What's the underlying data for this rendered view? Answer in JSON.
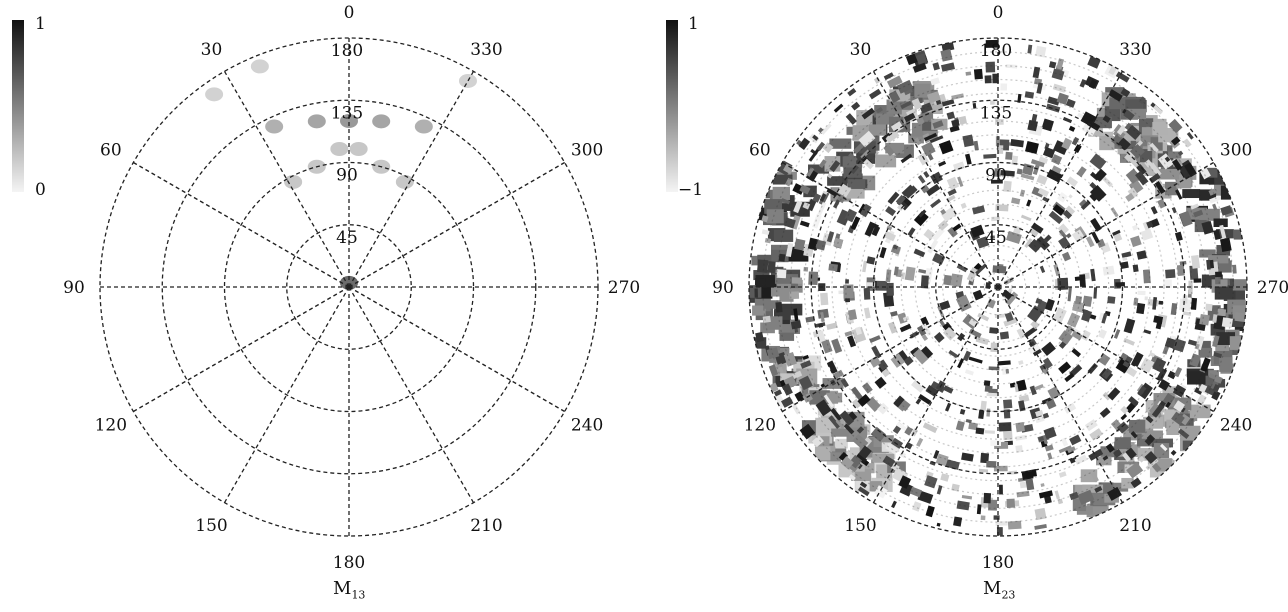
{
  "chart_data": [
    {
      "type": "heatmap",
      "projection": "polar",
      "caption": {
        "main": "M",
        "sub": "13"
      },
      "colorbar": {
        "max_label": "1",
        "min_label": "0",
        "range": [
          0,
          1
        ],
        "colors": [
          "#f4f4f4",
          "#111111"
        ]
      },
      "angular_ticks": [
        "0",
        "30",
        "60",
        "90",
        "120",
        "150",
        "180",
        "210",
        "240",
        "270",
        "300",
        "330"
      ],
      "radial_ticks": [
        "45",
        "90",
        "135",
        "180"
      ],
      "radial_range": [
        0,
        180
      ],
      "grid": true,
      "features": [
        {
          "theta": 0,
          "r": 120,
          "value": 0.4
        },
        {
          "theta": 11,
          "r": 122,
          "value": 0.35
        },
        {
          "theta": -11,
          "r": 122,
          "value": 0.35
        },
        {
          "theta": 25,
          "r": 128,
          "value": 0.3
        },
        {
          "theta": -25,
          "r": 128,
          "value": 0.3
        },
        {
          "theta": 4,
          "r": 100,
          "value": 0.2
        },
        {
          "theta": -4,
          "r": 100,
          "value": 0.2
        },
        {
          "theta": 15,
          "r": 90,
          "value": 0.2
        },
        {
          "theta": -15,
          "r": 90,
          "value": 0.2
        },
        {
          "theta": 28,
          "r": 86,
          "value": 0.2
        },
        {
          "theta": -28,
          "r": 86,
          "value": 0.2
        },
        {
          "theta": 35,
          "r": 170,
          "value": 0.15
        },
        {
          "theta": 22,
          "r": 172,
          "value": 0.15
        },
        {
          "theta": -30,
          "r": 172,
          "value": 0.15
        },
        {
          "theta": 0,
          "r": 3,
          "value": 0.6
        }
      ]
    },
    {
      "type": "heatmap",
      "projection": "polar",
      "caption": {
        "main": "M",
        "sub": "23"
      },
      "colorbar": {
        "max_label": "1",
        "min_label": "−1",
        "range": [
          -1,
          1
        ],
        "colors": [
          "#f4f4f4",
          "#111111"
        ]
      },
      "angular_ticks": [
        "0",
        "30",
        "60",
        "90",
        "120",
        "150",
        "180",
        "210",
        "240",
        "270",
        "300",
        "330"
      ],
      "radial_ticks": [
        "45",
        "90",
        "135",
        "180"
      ],
      "radial_range": [
        0,
        180
      ],
      "grid": true,
      "pattern": "dense concentric mottled texture spanning the full disk; dark sectors near theta 70-110 and 250-290 at outer radii"
    }
  ]
}
